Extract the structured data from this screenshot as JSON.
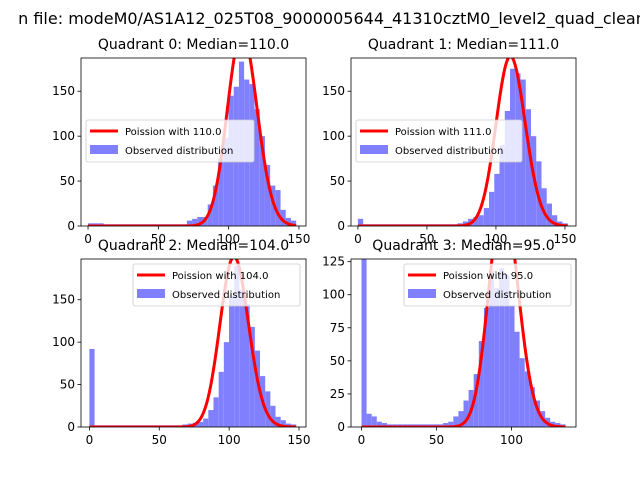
{
  "figure": {
    "suptitle": "n file: modeM0/AS1A12_025T08_9000005644_41310cztM0_level2_quad_clean"
  },
  "chart_data": [
    {
      "type": "bar",
      "title": "Quadrant 0: Median=110.0",
      "xlim": [
        -5,
        155
      ],
      "ylim": [
        0,
        187
      ],
      "xticks": [
        0,
        50,
        100,
        150
      ],
      "yticks": [
        0,
        50,
        100,
        150
      ],
      "grid": false,
      "legend_position": "center-left",
      "legend": [
        "Poission with 110.0",
        "Observed distribution"
      ],
      "bin_edges": [
        0,
        3.7,
        7.4,
        11.1,
        14.8,
        18.5,
        22.2,
        25.9,
        29.6,
        33.3,
        37,
        40.7,
        44.4,
        48.1,
        51.8,
        55.5,
        59.2,
        62.9,
        66.6,
        70.3,
        74,
        77.7,
        81.4,
        85.1,
        88.8,
        92.5,
        96.2,
        99.9,
        103.6,
        107.3,
        111,
        114.7,
        118.4,
        122.1,
        125.8,
        129.5,
        133.2,
        136.9,
        140.6,
        144.3,
        148
      ],
      "bin_counts": [
        3,
        3,
        3,
        2,
        2,
        2,
        2,
        2,
        2,
        2,
        2,
        2,
        2,
        2,
        2,
        2,
        2,
        2,
        2,
        6,
        8,
        10,
        10,
        24,
        45,
        75,
        98,
        145,
        155,
        183,
        163,
        158,
        130,
        100,
        68,
        45,
        40,
        18,
        9,
        6
      ],
      "poisson_mean": 110.0
    },
    {
      "type": "bar",
      "title": "Quadrant 1: Median=111.0",
      "xlim": [
        -5,
        158
      ],
      "ylim": [
        0,
        187
      ],
      "xticks": [
        0,
        50,
        100,
        150
      ],
      "yticks": [
        0,
        50,
        100,
        150
      ],
      "grid": false,
      "legend_position": "center-left",
      "legend": [
        "Poission with 111.0",
        "Observed distribution"
      ],
      "bin_edges": [
        0,
        3.8,
        7.6,
        11.4,
        15.2,
        19,
        22.8,
        26.6,
        30.4,
        34.2,
        38,
        41.8,
        45.6,
        49.4,
        53.2,
        57,
        60.8,
        64.6,
        68.4,
        72.2,
        76,
        79.8,
        83.6,
        87.4,
        91.2,
        95,
        98.8,
        102.6,
        106.4,
        110.2,
        114,
        117.8,
        121.6,
        125.4,
        129.2,
        133,
        136.8,
        140.6,
        144.4,
        148.2,
        152
      ],
      "bin_counts": [
        8,
        2,
        2,
        2,
        2,
        2,
        2,
        2,
        2,
        2,
        2,
        2,
        2,
        2,
        2,
        2,
        2,
        2,
        2,
        3,
        5,
        8,
        10,
        12,
        20,
        38,
        58,
        90,
        128,
        175,
        170,
        163,
        130,
        100,
        72,
        42,
        25,
        12,
        5,
        3
      ],
      "poisson_mean": 111.0
    },
    {
      "type": "bar",
      "title": "Quadrant 2: Median=104.0",
      "xlim": [
        -6,
        155
      ],
      "ylim": [
        0,
        198
      ],
      "xticks": [
        0,
        50,
        100,
        150
      ],
      "yticks": [
        0,
        50,
        100,
        150
      ],
      "grid": false,
      "legend_position": "upper-right",
      "legend": [
        "Poission with 104.0",
        "Observed distribution"
      ],
      "bin_edges": [
        0,
        3.7,
        7.4,
        11.1,
        14.8,
        18.5,
        22.2,
        25.9,
        29.6,
        33.3,
        37,
        40.7,
        44.4,
        48.1,
        51.8,
        55.5,
        59.2,
        62.9,
        66.6,
        70.3,
        74,
        77.7,
        81.4,
        85.1,
        88.8,
        92.5,
        96.2,
        99.9,
        103.6,
        107.3,
        111,
        114.7,
        118.4,
        122.1,
        125.8,
        129.5,
        133.2,
        136.9,
        140.6,
        144.3,
        148
      ],
      "bin_counts": [
        92,
        2,
        2,
        2,
        2,
        2,
        2,
        2,
        2,
        2,
        2,
        2,
        2,
        2,
        2,
        2,
        2,
        2,
        3,
        4,
        5,
        6,
        10,
        20,
        35,
        65,
        100,
        155,
        190,
        162,
        145,
        118,
        90,
        60,
        42,
        25,
        12,
        8,
        4,
        3
      ],
      "poisson_mean": 104.0
    },
    {
      "type": "bar",
      "title": "Quadrant 3: Median=95.0",
      "xlim": [
        -7,
        143
      ],
      "ylim": [
        0,
        127
      ],
      "xticks": [
        0,
        50,
        100
      ],
      "yticks": [
        0,
        25,
        50,
        75,
        100,
        125
      ],
      "grid": false,
      "legend_position": "upper-right",
      "legend": [
        "Poission with 95.0",
        "Observed distribution"
      ],
      "bin_edges": [
        0,
        3.4,
        6.8,
        10.2,
        13.6,
        17,
        20.4,
        23.8,
        27.2,
        30.6,
        34,
        37.4,
        40.8,
        44.2,
        47.6,
        51,
        54.4,
        57.8,
        61.2,
        64.6,
        68,
        71.4,
        74.8,
        78.2,
        81.6,
        85,
        88.4,
        91.8,
        95.2,
        98.6,
        102,
        105.4,
        108.8,
        112.2,
        115.6,
        119,
        122.4,
        125.8,
        129.2,
        132.6,
        136
      ],
      "bin_counts": [
        127,
        10,
        8,
        4,
        3,
        2,
        2,
        2,
        2,
        2,
        2,
        2,
        2,
        2,
        2,
        2,
        3,
        4,
        8,
        12,
        20,
        28,
        40,
        65,
        90,
        118,
        105,
        120,
        115,
        92,
        72,
        52,
        42,
        30,
        20,
        12,
        7,
        4,
        3,
        2
      ],
      "poisson_mean": 95.0
    }
  ],
  "colors": {
    "bars": "#8080ff",
    "curve": "#ff0000",
    "axes": "#000000"
  }
}
